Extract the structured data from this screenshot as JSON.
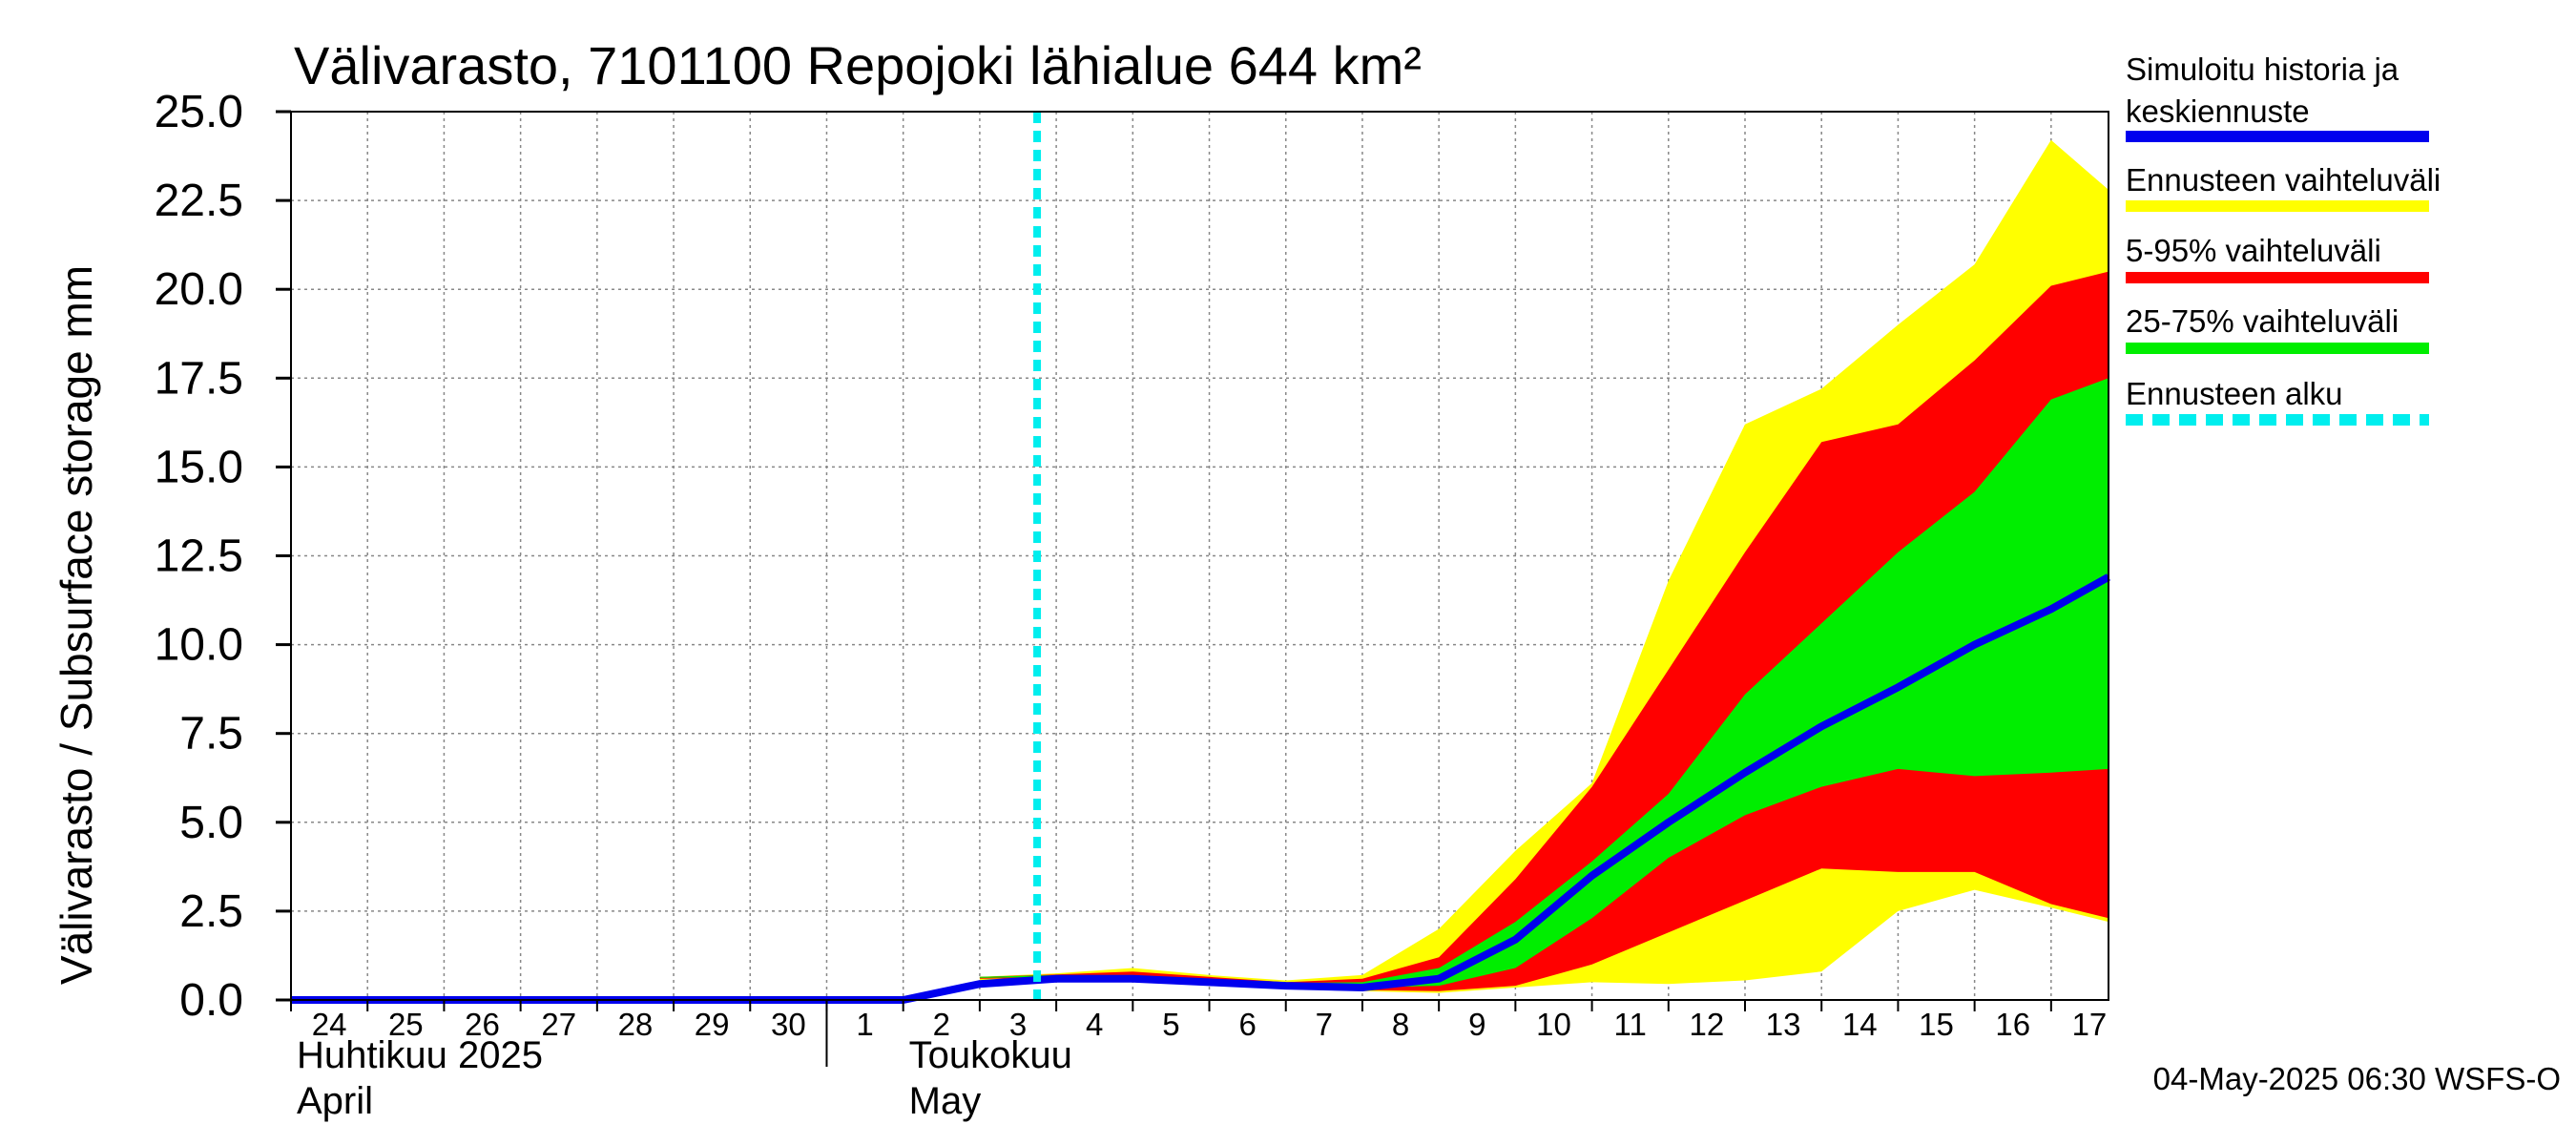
{
  "chart_data": {
    "type": "area",
    "title": "Välivarasto, 7101100 Repojoki lähialue 644 km²",
    "ylabel": "Välivarasto / Subsurface storage  mm",
    "ylim": [
      0,
      25
    ],
    "yticks": [
      "0.0",
      "2.5",
      "5.0",
      "7.5",
      "10.0",
      "12.5",
      "15.0",
      "17.5",
      "20.0",
      "22.5",
      "25.0"
    ],
    "x_start": "2025-04-24",
    "x_end": "2025-05-17",
    "day_labels": [
      "24",
      "25",
      "26",
      "27",
      "28",
      "29",
      "30",
      "1",
      "2",
      "3",
      "4",
      "5",
      "6",
      "7",
      "8",
      "9",
      "10",
      "11",
      "12",
      "13",
      "14",
      "15",
      "16",
      "17"
    ],
    "months": [
      {
        "fi": "Huhtikuu  2025",
        "en": "April",
        "start": "2025-04-24"
      },
      {
        "fi": "Toukokuu",
        "en": "May",
        "start": "2025-05-02"
      }
    ],
    "forecast_start": "2025-05-03T18:00",
    "grid": true,
    "x": [
      "2025-05-03",
      "2025-05-04",
      "2025-05-05",
      "2025-05-06",
      "2025-05-07",
      "2025-05-08",
      "2025-05-09",
      "2025-05-10",
      "2025-05-11",
      "2025-05-12",
      "2025-05-13",
      "2025-05-14",
      "2025-05-15",
      "2025-05-16",
      "2025-05-17",
      "2025-05-17T18:00"
    ],
    "bands": [
      {
        "name": "Ennusteen vaihteluväli",
        "color": "#ffff00",
        "lower": [
          0.55,
          0.6,
          0.5,
          0.4,
          0.3,
          0.25,
          0.2,
          0.35,
          0.5,
          0.45,
          0.55,
          0.8,
          2.5,
          3.1,
          2.6,
          2.2
        ],
        "upper": [
          0.65,
          0.75,
          0.9,
          0.7,
          0.55,
          0.7,
          2.0,
          4.2,
          6.1,
          11.8,
          16.2,
          17.2,
          19.0,
          20.7,
          24.2,
          22.8
        ]
      },
      {
        "name": "5-95% vaihteluväli",
        "color": "#ff0000",
        "lower": [
          0.6,
          0.62,
          0.52,
          0.42,
          0.32,
          0.28,
          0.25,
          0.4,
          1.0,
          1.9,
          2.8,
          3.7,
          3.6,
          3.6,
          2.7,
          2.3
        ],
        "upper": [
          0.65,
          0.72,
          0.8,
          0.65,
          0.5,
          0.6,
          1.2,
          3.4,
          6.0,
          9.3,
          12.6,
          15.7,
          16.2,
          18.0,
          20.1,
          20.5
        ]
      },
      {
        "name": "25-75% vaihteluväli",
        "color": "#00ee00",
        "lower": [
          0.62,
          0.65,
          0.55,
          0.45,
          0.35,
          0.35,
          0.4,
          0.9,
          2.3,
          4.0,
          5.2,
          6.0,
          6.5,
          6.3,
          6.4,
          6.5
        ],
        "upper": [
          0.65,
          0.7,
          0.7,
          0.6,
          0.48,
          0.5,
          0.9,
          2.2,
          3.9,
          5.8,
          8.6,
          10.6,
          12.6,
          14.3,
          16.9,
          17.5
        ]
      }
    ],
    "series": [
      {
        "name": "Simuloitu historia ja keskiennuste",
        "color": "#0000ee",
        "x": [
          "2025-04-24",
          "2025-04-25",
          "2025-04-26",
          "2025-04-27",
          "2025-04-28",
          "2025-04-29",
          "2025-04-30",
          "2025-05-01",
          "2025-05-02",
          "2025-05-03",
          "2025-05-04",
          "2025-05-05",
          "2025-05-06",
          "2025-05-07",
          "2025-05-08",
          "2025-05-09",
          "2025-05-10",
          "2025-05-11",
          "2025-05-12",
          "2025-05-13",
          "2025-05-14",
          "2025-05-15",
          "2025-05-16",
          "2025-05-17",
          "2025-05-17T18:00"
        ],
        "values": [
          0.0,
          0.0,
          0.0,
          0.0,
          0.0,
          0.0,
          0.0,
          0.0,
          0.0,
          0.45,
          0.6,
          0.6,
          0.5,
          0.4,
          0.35,
          0.6,
          1.7,
          3.5,
          5.0,
          6.4,
          7.7,
          8.8,
          10.0,
          11.0,
          11.9
        ]
      }
    ],
    "legend": [
      {
        "label": "Simuloitu historia ja keskiennuste",
        "color": "#0000ee",
        "style": "solid"
      },
      {
        "label": "Ennusteen vaihteluväli",
        "color": "#ffff00",
        "style": "solid"
      },
      {
        "label": "5-95% vaihteluväli",
        "color": "#ff0000",
        "style": "solid"
      },
      {
        "label": "25-75% vaihteluväli",
        "color": "#00ee00",
        "style": "solid"
      },
      {
        "label": "Ennusteen alku",
        "color": "#00eeee",
        "style": "dashed"
      }
    ],
    "legend_placement": "right"
  },
  "footer": "04-May-2025 06:30 WSFS-O"
}
